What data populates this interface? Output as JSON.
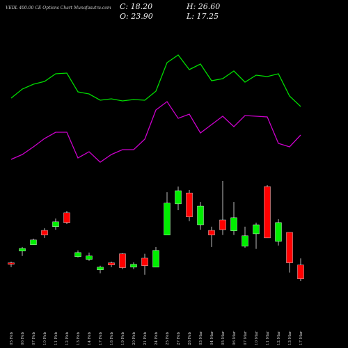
{
  "chart_data": {
    "type": "candlestick",
    "title": "VEDL 400.00 CE Options  Chart Munafasutra.com",
    "header": {
      "close": "C: 18.20",
      "high": "H: 26.60",
      "open": "O: 23.90",
      "low": "L: 17.25"
    },
    "categories": [
      "05 Feb",
      "06 Feb",
      "07 Feb",
      "10 Feb",
      "11 Feb",
      "12 Feb",
      "13 Feb",
      "14 Feb",
      "17 Feb",
      "18 Feb",
      "19 Feb",
      "20 Feb",
      "21 Feb",
      "24 Feb",
      "25 Feb",
      "27 Feb",
      "28 Feb",
      "03 Mar",
      "04 Mar",
      "05 Mar",
      "06 Mar",
      "07 Mar",
      "10 Mar",
      "11 Mar",
      "12 Mar",
      "13 Mar",
      "17 Mar"
    ],
    "open": [
      24.8,
      29.6,
      32.2,
      38.1,
      39.6,
      45.3,
      27.3,
      26.2,
      21.9,
      24.8,
      28.5,
      23.0,
      26.7,
      23.0,
      36.2,
      49.0,
      53.5,
      40.4,
      38.1,
      42.4,
      37.9,
      31.6,
      36.7,
      56.1,
      33.6,
      37.3,
      23.9
    ],
    "high": [
      25.3,
      31.3,
      34.7,
      39.0,
      43.0,
      46.1,
      29.9,
      29.0,
      23.6,
      25.3,
      28.7,
      25.0,
      28.5,
      31.3,
      53.8,
      56.1,
      54.7,
      49.8,
      39.6,
      58.4,
      49.8,
      39.6,
      41.3,
      56.7,
      42.7,
      37.3,
      26.6
    ],
    "low": [
      23.0,
      27.6,
      32.2,
      35.0,
      38.4,
      40.7,
      27.0,
      25.6,
      20.5,
      23.0,
      22.2,
      22.2,
      19.9,
      23.0,
      36.2,
      46.4,
      41.9,
      38.4,
      31.3,
      36.2,
      36.2,
      31.0,
      30.5,
      35.0,
      31.9,
      20.8,
      17.25
    ],
    "close": [
      24.2,
      30.7,
      34.2,
      36.2,
      41.6,
      41.3,
      29.0,
      27.6,
      23.0,
      23.9,
      22.8,
      24.2,
      23.6,
      29.9,
      49.3,
      54.4,
      43.6,
      48.1,
      36.2,
      38.4,
      43.3,
      35.9,
      40.4,
      35.0,
      41.3,
      24.8,
      18.2
    ],
    "up_color": "#00ee00",
    "down_color": "#ff0000",
    "lines": [
      {
        "color": "#00dd00",
        "values": [
          109,
          122,
          129,
          133,
          144,
          145,
          118,
          115,
          106,
          108,
          105,
          107,
          106,
          119,
          160,
          171,
          150,
          158,
          134,
          137,
          148,
          132,
          142,
          140,
          144,
          112,
          97
        ]
      },
      {
        "color": "#cc00cc",
        "values": [
          21,
          28,
          39,
          51,
          60,
          60,
          23,
          32,
          17,
          28,
          35,
          35,
          50,
          92,
          104,
          80,
          86,
          59,
          71,
          83,
          68,
          84,
          83,
          82,
          44,
          39,
          56
        ]
      }
    ]
  }
}
